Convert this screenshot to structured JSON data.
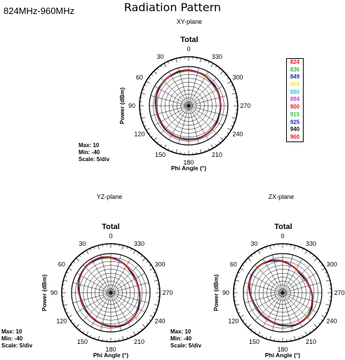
{
  "header": {
    "band": "824MHz-960MHz",
    "title": "Radiation Pattern"
  },
  "legend": {
    "entries": [
      {
        "label": "824",
        "color": "#e0202a"
      },
      {
        "label": "836",
        "color": "#3ab54a"
      },
      {
        "label": "849",
        "color": "#1a2bb0"
      },
      {
        "label": "869",
        "color": "#f2e82a"
      },
      {
        "label": "880",
        "color": "#35c8d8"
      },
      {
        "label": "894",
        "color": "#c23ad0"
      },
      {
        "label": "900",
        "color": "#e8202a"
      },
      {
        "label": "915",
        "color": "#2ec83a"
      },
      {
        "label": "925",
        "color": "#1a2bb0"
      },
      {
        "label": "940",
        "color": "#111111"
      },
      {
        "label": "960",
        "color": "#e0202a"
      }
    ]
  },
  "chart_data": [
    {
      "type": "polar",
      "plane": "XY-plane",
      "title": "Total",
      "xlabel": "Phi Angle  (°)",
      "ylabel": "Power  (dBm)",
      "angle_ticks": [
        "0",
        "30",
        "60",
        "90",
        "120",
        "150",
        "180",
        "210",
        "240",
        "270",
        "300",
        "330"
      ],
      "rlim": [
        -40,
        10
      ],
      "stats": {
        "max": "Max: 10",
        "min": "Min: -40",
        "scale": "Scale: 5/div"
      },
      "series_profile": {
        "base": 0.85,
        "a1": 0.02,
        "a2": 0.03,
        "phase": 0.6
      },
      "series": [
        {
          "name": "824"
        },
        {
          "name": "836"
        },
        {
          "name": "849"
        },
        {
          "name": "869"
        },
        {
          "name": "880"
        },
        {
          "name": "894"
        },
        {
          "name": "900"
        },
        {
          "name": "915"
        },
        {
          "name": "925"
        },
        {
          "name": "940"
        },
        {
          "name": "960"
        }
      ]
    },
    {
      "type": "polar",
      "plane": "YZ-plane",
      "title": "Total",
      "xlabel": "Phi Angle  (°)",
      "ylabel": "Power  (dBm)",
      "angle_ticks": [
        "0",
        "30",
        "60",
        "90",
        "120",
        "150",
        "180",
        "210",
        "240",
        "270",
        "300",
        "330"
      ],
      "rlim": [
        -40,
        10
      ],
      "stats": {
        "max": "Max: 10",
        "min": "Min: -40",
        "scale": "Scale: 5/div"
      },
      "series_profile": {
        "base": 0.82,
        "a1": 0.04,
        "a2": 0.08,
        "phase": 1.2
      },
      "series": [
        {
          "name": "824"
        },
        {
          "name": "836"
        },
        {
          "name": "849"
        },
        {
          "name": "869"
        },
        {
          "name": "880"
        },
        {
          "name": "894"
        },
        {
          "name": "900"
        },
        {
          "name": "915"
        },
        {
          "name": "925"
        },
        {
          "name": "940"
        },
        {
          "name": "960"
        }
      ]
    },
    {
      "type": "polar",
      "plane": "ZX-plane",
      "title": "Total",
      "xlabel": "Phi Angle  (°)",
      "ylabel": "Power  (dBm)",
      "angle_ticks": [
        "0",
        "30",
        "60",
        "90",
        "120",
        "150",
        "180",
        "210",
        "240",
        "270",
        "300",
        "330"
      ],
      "rlim": [
        -40,
        10
      ],
      "stats": {
        "max": "Max: 10",
        "min": "Min: -40",
        "scale": "Scale: 5/div"
      },
      "series_profile": {
        "base": 0.8,
        "a1": 0.05,
        "a2": 0.09,
        "phase": 2.0
      },
      "series": [
        {
          "name": "824"
        },
        {
          "name": "836"
        },
        {
          "name": "849"
        },
        {
          "name": "869"
        },
        {
          "name": "880"
        },
        {
          "name": "894"
        },
        {
          "name": "900"
        },
        {
          "name": "915"
        },
        {
          "name": "925"
        },
        {
          "name": "940"
        },
        {
          "name": "960"
        }
      ]
    }
  ]
}
